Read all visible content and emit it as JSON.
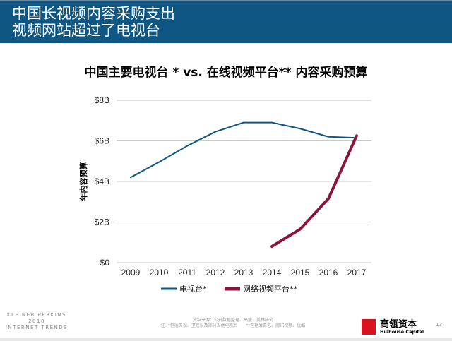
{
  "header": {
    "line1": "中国长视频内容采购支出",
    "line2": "视频网站超过了电视台"
  },
  "chart_data": {
    "type": "line",
    "title": "中国主要电视台 * vs. 在线视频平台** 内容采购预算",
    "ylabel": "年内容预算",
    "xlabel": "",
    "categories": [
      "2009",
      "2010",
      "2011",
      "2012",
      "2013",
      "2014",
      "2015",
      "2016",
      "2017"
    ],
    "ylim": [
      0,
      8
    ],
    "yticks": [
      {
        "v": 0,
        "label": "$0"
      },
      {
        "v": 2,
        "label": "$2B"
      },
      {
        "v": 4,
        "label": "$4B"
      },
      {
        "v": 6,
        "label": "$6B"
      },
      {
        "v": 8,
        "label": "$8B"
      }
    ],
    "grid": true,
    "legend_position": "bottom",
    "series": [
      {
        "name": "电视台*",
        "color": "#0f5782",
        "values": [
          4.2,
          4.95,
          5.75,
          6.45,
          6.9,
          6.9,
          6.6,
          6.2,
          6.15
        ]
      },
      {
        "name": "网络视频平台**",
        "color": "#8b1538",
        "values": [
          null,
          null,
          null,
          null,
          null,
          0.8,
          1.65,
          3.15,
          6.25
        ]
      }
    ]
  },
  "footer": {
    "brand_line1": "KLEINER PERKINS",
    "brand_line2": "2018",
    "brand_line3": "INTERNET TRENDS",
    "source": "资料来源：公开数据整理、高盛、美林研究",
    "note1": "注: *包括央视、卫视以及部分当地电视台",
    "note2": "**包括爱奇艺、腾讯视频、优酷",
    "logo_cn": "高瓴资本",
    "logo_en": "Hillhouse Capital",
    "logo_mark": "HILLHOUSE",
    "page": "13"
  }
}
